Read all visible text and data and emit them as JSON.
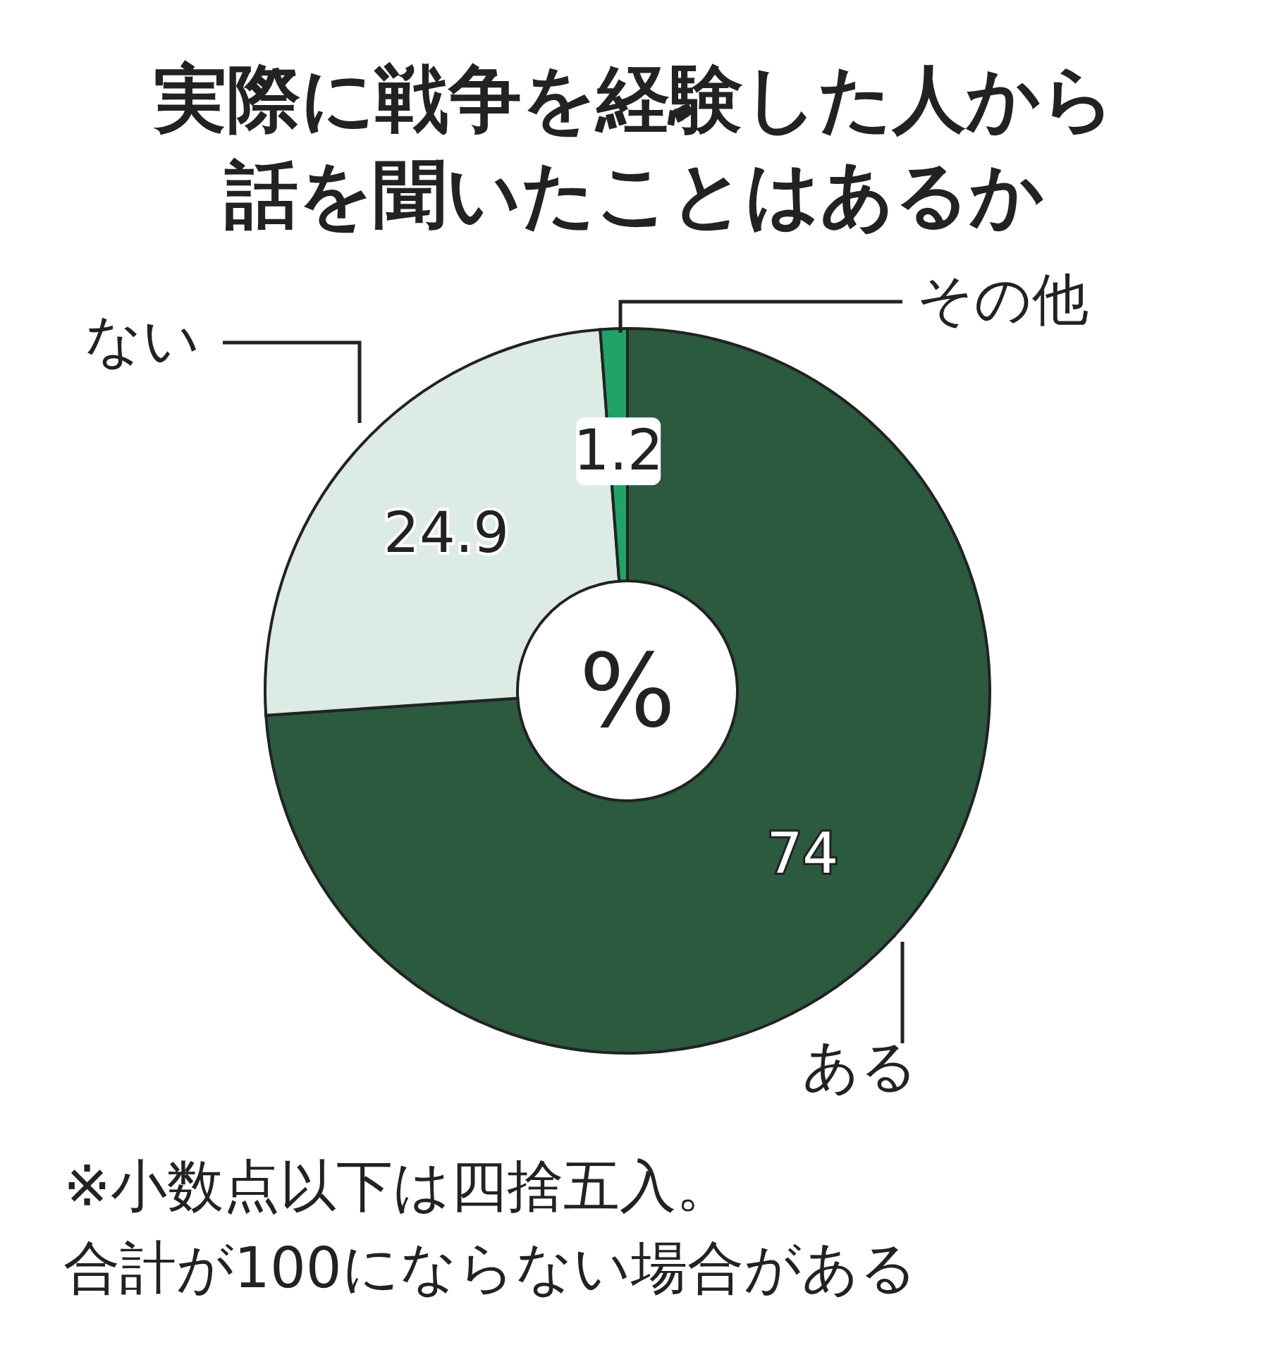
{
  "chart_data": {
    "type": "donut",
    "title": "実際に戦争を経験した人から話を聞いたことはあるか",
    "categories": [
      "ある",
      "ない",
      "その他"
    ],
    "values": [
      74,
      24.9,
      1.2
    ],
    "colors": [
      "#2b5a3e",
      "#dcebe3",
      "#1fa366"
    ],
    "data_labels": true,
    "annotations": [
      "%",
      "※小数点以下は四捨五入。",
      "合計が100にならない場合がある"
    ]
  }
}
